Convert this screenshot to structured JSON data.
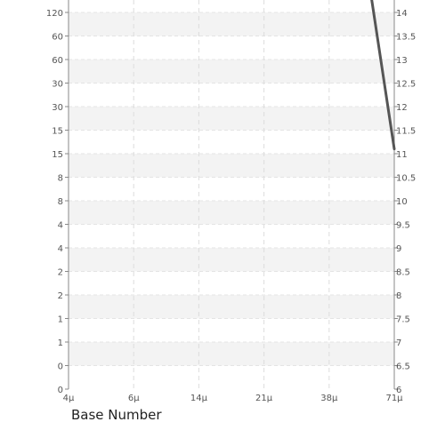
{
  "chart_data": {
    "type": "line",
    "xlabel": "Base Number",
    "x_ticks": [
      "4μ",
      "6μ",
      "14μ",
      "21μ",
      "38μ",
      "71μ"
    ],
    "left_ticks": [
      "0",
      "0",
      "1",
      "1",
      "2",
      "2",
      "4",
      "4",
      "8",
      "8",
      "15",
      "15",
      "30",
      "30",
      "60",
      "60",
      "120"
    ],
    "right_ylim": [
      6,
      14
    ],
    "right_ticks": [
      "6",
      "6.5",
      "7",
      "7.5",
      "8",
      "8.5",
      "9",
      "9.5",
      "10",
      "10.5",
      "11",
      "11.5",
      "12",
      "12.5",
      "13",
      "13.5",
      "14"
    ],
    "series": [
      {
        "color": "#555555",
        "points": [
          {
            "x": 4.65,
            "y": 14.3
          },
          {
            "x": 5,
            "y": 11.1
          }
        ]
      }
    ],
    "grid": true,
    "grid_bands": true
  }
}
